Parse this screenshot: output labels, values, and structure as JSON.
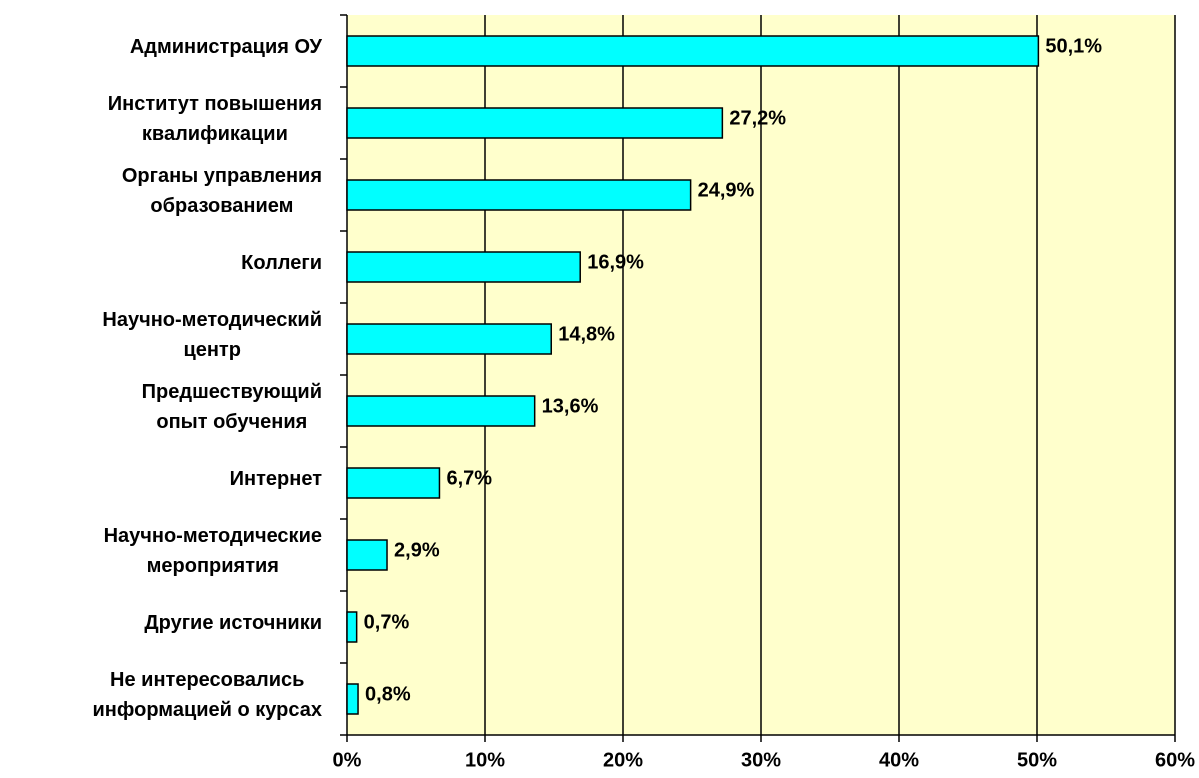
{
  "chart_data": {
    "type": "bar",
    "orientation": "horizontal",
    "categories": [
      "Администрация ОУ",
      "Институт повышения\nквалификации",
      "Органы управления\nобразованием",
      "Коллеги",
      "Научно-методический\nцентр",
      "Предшествующий\nопыт обучения",
      "Интернет",
      "Научно-методические\nмероприятия",
      "Другие источники",
      "Не интересовались\nинформацией о курсах"
    ],
    "values": [
      50.1,
      27.2,
      24.9,
      16.9,
      14.8,
      13.6,
      6.7,
      2.9,
      0.7,
      0.8
    ],
    "value_labels": [
      "50,1%",
      "27,2%",
      "24,9%",
      "16,9%",
      "14,8%",
      "13,6%",
      "6,7%",
      "2,9%",
      "0,7%",
      "0,8%"
    ],
    "color": "#00ffff",
    "plot_background": "#ffffcc",
    "grid": true,
    "xlim": [
      0,
      60
    ],
    "xticks": [
      {
        "value": 0,
        "label": "0%"
      },
      {
        "value": 10,
        "label": "10%"
      },
      {
        "value": 20,
        "label": "20%"
      },
      {
        "value": 30,
        "label": "30%"
      },
      {
        "value": 40,
        "label": "40%"
      },
      {
        "value": 50,
        "label": "50%"
      },
      {
        "value": 60,
        "label": "60%"
      }
    ]
  }
}
